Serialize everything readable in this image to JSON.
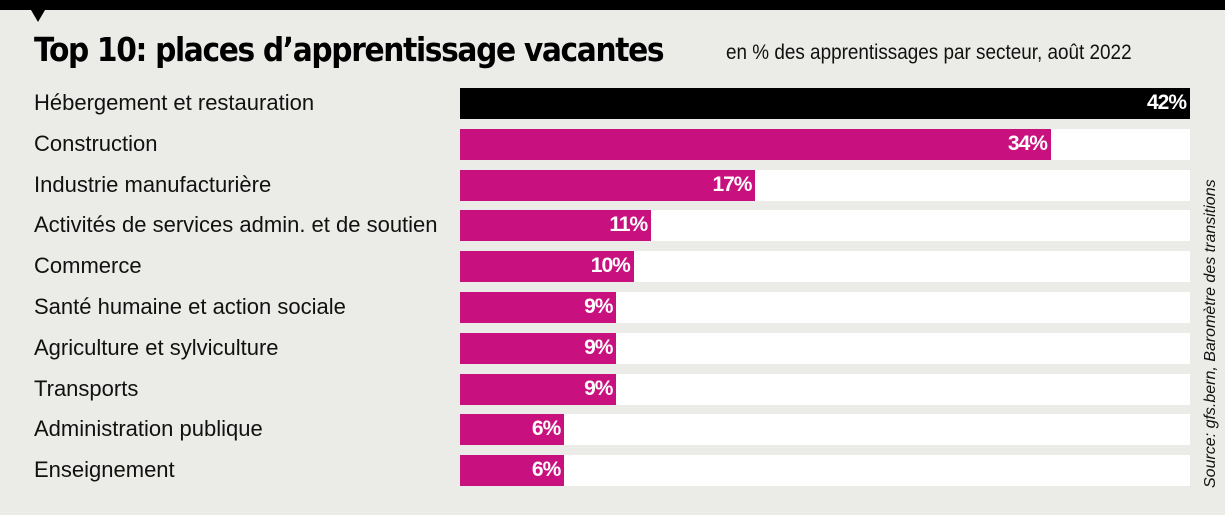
{
  "title": "Top 10: places d’apprentissage vacantes",
  "subtitle": "en % des apprentissages par secteur, août 2022",
  "source": "Source: gfs.bern, Baromètre des transitions",
  "colors": {
    "highlight": "#000000",
    "bar": "#c8117f",
    "track": "#ffffff",
    "background": "#ebebe8"
  },
  "chart_data": {
    "type": "bar",
    "orientation": "horizontal",
    "title": "Top 10: places d’apprentissage vacantes",
    "subtitle": "en % des apprentissages par secteur, août 2022",
    "categories": [
      "Hébergement et restauration",
      "Construction",
      "Industrie manufacturière",
      "Activités de services admin. et de soutien",
      "Commerce",
      "Santé humaine et action sociale",
      "Agriculture et sylviculture",
      "Transports",
      "Administration publique",
      "Enseignement"
    ],
    "values": [
      42,
      34,
      17,
      11,
      10,
      9,
      9,
      9,
      6,
      6
    ],
    "labels": [
      "42%",
      "34%",
      "17%",
      "11%",
      "10%",
      "9%",
      "9%",
      "9%",
      "6%",
      "6%"
    ],
    "unit": "%",
    "xlim": [
      0,
      42
    ],
    "grid": false,
    "highlighted_index": 0
  }
}
